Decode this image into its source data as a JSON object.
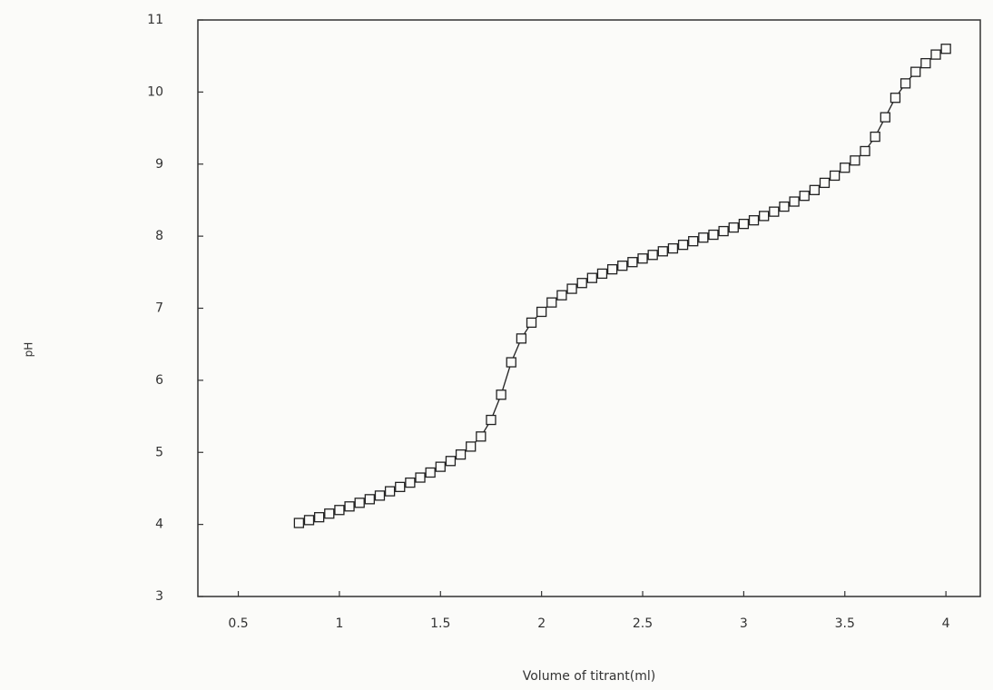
{
  "chart_data": {
    "type": "line",
    "xlabel": "Volume of titrant(ml)",
    "ylabel": "pH",
    "x": [
      0.8,
      0.85,
      0.9,
      0.95,
      1.0,
      1.05,
      1.1,
      1.15,
      1.2,
      1.25,
      1.3,
      1.35,
      1.4,
      1.45,
      1.5,
      1.55,
      1.6,
      1.65,
      1.7,
      1.75,
      1.8,
      1.85,
      1.9,
      1.95,
      2.0,
      2.05,
      2.1,
      2.15,
      2.2,
      2.25,
      2.3,
      2.35,
      2.4,
      2.45,
      2.5,
      2.55,
      2.6,
      2.65,
      2.7,
      2.75,
      2.8,
      2.85,
      2.9,
      2.95,
      3.0,
      3.05,
      3.1,
      3.15,
      3.2,
      3.25,
      3.3,
      3.35,
      3.4,
      3.45,
      3.5,
      3.55,
      3.6,
      3.65,
      3.7,
      3.75,
      3.8,
      3.85,
      3.9,
      3.95,
      4.0
    ],
    "values": [
      4.02,
      4.06,
      4.1,
      4.15,
      4.2,
      4.25,
      4.3,
      4.35,
      4.4,
      4.46,
      4.52,
      4.58,
      4.65,
      4.72,
      4.8,
      4.88,
      4.97,
      5.08,
      5.22,
      5.45,
      5.8,
      6.25,
      6.58,
      6.8,
      6.95,
      7.08,
      7.18,
      7.27,
      7.35,
      7.42,
      7.48,
      7.54,
      7.59,
      7.64,
      7.69,
      7.74,
      7.79,
      7.83,
      7.88,
      7.93,
      7.98,
      8.02,
      8.07,
      8.12,
      8.17,
      8.22,
      8.28,
      8.34,
      8.41,
      8.48,
      8.56,
      8.64,
      8.74,
      8.84,
      8.95,
      9.05,
      9.18,
      9.38,
      9.65,
      9.92,
      10.12,
      10.28,
      10.4,
      10.52,
      10.6
    ],
    "color": "#222222",
    "marker": "square",
    "xlim": [
      0.3,
      4.17
    ],
    "ylim": [
      3,
      11
    ],
    "xticks": [
      0.5,
      1,
      1.5,
      2,
      2.5,
      3,
      3.5,
      4
    ],
    "yticks": [
      3,
      4,
      5,
      6,
      7,
      8,
      9,
      10,
      11
    ]
  }
}
